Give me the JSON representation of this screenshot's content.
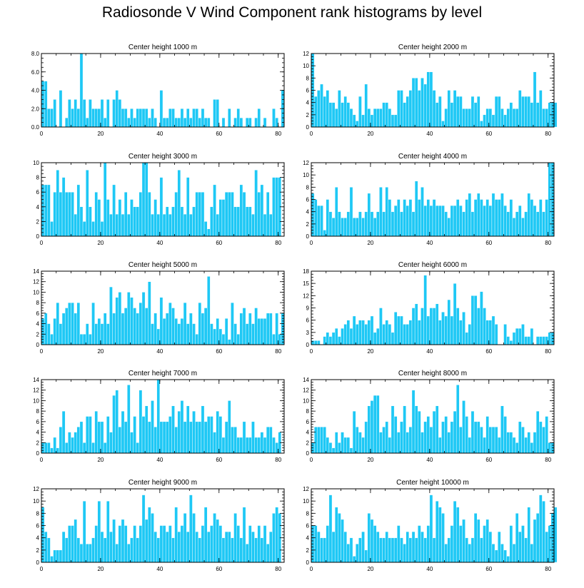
{
  "title": "Radiosonde V Wind Component rank histograms by level",
  "colors": {
    "bar": "#1ec8f5",
    "bar_edge": "#ffffff"
  },
  "chart_data": [
    {
      "type": "bar",
      "title": "Center height 1000 m",
      "x_start": 0,
      "xlim": [
        0,
        82
      ],
      "xticks": [
        0,
        20,
        40,
        60,
        80
      ],
      "ylim": [
        0,
        8
      ],
      "yticks": [
        0,
        2,
        4,
        6,
        8
      ],
      "ytick_labels": [
        "0.0",
        "2.0",
        "4.0",
        "6.0",
        "8.0"
      ],
      "values": [
        5,
        5,
        2,
        2,
        3,
        0,
        4,
        0,
        1,
        3,
        2,
        3,
        2,
        8,
        3,
        1,
        3,
        2,
        2,
        2,
        3,
        1,
        3,
        0,
        3,
        4,
        3,
        2,
        2,
        1,
        2,
        1,
        2,
        2,
        2,
        2,
        1,
        2,
        1,
        0,
        4,
        1,
        1,
        2,
        2,
        1,
        1,
        2,
        1,
        2,
        1,
        2,
        2,
        1,
        2,
        1,
        1,
        0,
        3,
        3,
        0,
        1,
        0,
        2,
        0,
        1,
        2,
        1,
        0,
        1,
        1,
        0,
        1,
        2,
        0,
        1,
        0,
        0,
        2,
        1,
        0,
        4
      ]
    },
    {
      "type": "bar",
      "title": "Center height 2000 m",
      "x_start": 0,
      "xlim": [
        0,
        82
      ],
      "xticks": [
        0,
        20,
        40,
        60,
        80
      ],
      "ylim": [
        0,
        12
      ],
      "yticks": [
        0,
        2,
        4,
        6,
        8,
        10,
        12
      ],
      "values": [
        12,
        5,
        6,
        7,
        5,
        6,
        4,
        4,
        3,
        6,
        4,
        5,
        4,
        3,
        2,
        1,
        5,
        2,
        7,
        3,
        2,
        3,
        3,
        3,
        4,
        4,
        3,
        2,
        2,
        6,
        6,
        4,
        5,
        6,
        8,
        8,
        6,
        8,
        7,
        9,
        9,
        6,
        4,
        5,
        1,
        3,
        6,
        4,
        6,
        5,
        5,
        3,
        3,
        3,
        5,
        4,
        5,
        1,
        2,
        3,
        3,
        2,
        5,
        5,
        3,
        2,
        3,
        4,
        3,
        3,
        6,
        5,
        5,
        5,
        4,
        9,
        4,
        6,
        3,
        3,
        4,
        4,
        4
      ]
    },
    {
      "type": "bar",
      "title": "Center height 3000 m",
      "x_start": 0,
      "xlim": [
        0,
        82
      ],
      "xticks": [
        0,
        20,
        40,
        60,
        80
      ],
      "ylim": [
        0,
        10
      ],
      "yticks": [
        0,
        2,
        4,
        6,
        8,
        10
      ],
      "values": [
        7,
        7,
        7,
        2,
        6,
        9,
        6,
        8,
        6,
        6,
        6,
        3,
        7,
        4,
        2,
        9,
        4,
        2,
        6,
        5,
        2,
        10,
        5,
        3,
        7,
        3,
        5,
        3,
        6,
        3,
        5,
        4,
        4,
        6,
        10,
        10,
        6,
        3,
        5,
        3,
        8,
        3,
        4,
        3,
        4,
        6,
        9,
        4,
        3,
        8,
        3,
        4,
        6,
        6,
        6,
        2,
        1,
        4,
        7,
        3,
        5,
        5,
        6,
        6,
        6,
        4,
        4,
        7,
        6,
        4,
        4,
        3,
        9,
        6,
        7,
        3,
        6,
        3,
        8,
        8,
        8
      ]
    },
    {
      "type": "bar",
      "title": "Center height 4000 m",
      "x_start": 0,
      "xlim": [
        0,
        82
      ],
      "xticks": [
        0,
        20,
        40,
        60,
        80
      ],
      "ylim": [
        0,
        12
      ],
      "yticks": [
        0,
        2,
        4,
        6,
        8,
        10,
        12
      ],
      "values": [
        7,
        6,
        5,
        5,
        1,
        6,
        4,
        3,
        8,
        4,
        3,
        3,
        4,
        8,
        3,
        3,
        4,
        3,
        4,
        7,
        4,
        3,
        4,
        8,
        4,
        8,
        6,
        4,
        5,
        6,
        4,
        6,
        5,
        6,
        4,
        9,
        6,
        8,
        5,
        6,
        5,
        6,
        5,
        5,
        5,
        4,
        3,
        5,
        5,
        6,
        5,
        4,
        6,
        7,
        4,
        6,
        7,
        6,
        5,
        6,
        5,
        7,
        6,
        6,
        7,
        5,
        4,
        6,
        3,
        4,
        5,
        3,
        4,
        7,
        6,
        5,
        4,
        6,
        4,
        6,
        12,
        12
      ]
    },
    {
      "type": "bar",
      "title": "Center height 5000 m",
      "x_start": 0,
      "xlim": [
        0,
        82
      ],
      "xticks": [
        0,
        20,
        40,
        60,
        80
      ],
      "ylim": [
        0,
        14
      ],
      "yticks": [
        0,
        2,
        4,
        6,
        8,
        10,
        12,
        14
      ],
      "values": [
        5,
        6,
        4,
        2,
        5,
        8,
        4,
        6,
        7,
        8,
        8,
        6,
        8,
        2,
        2,
        4,
        2,
        8,
        4,
        5,
        4,
        6,
        4,
        11,
        6,
        9,
        10,
        6,
        7,
        10,
        9,
        7,
        6,
        8,
        10,
        7,
        12,
        4,
        6,
        3,
        9,
        5,
        6,
        8,
        7,
        5,
        4,
        5,
        8,
        4,
        6,
        4,
        2,
        8,
        6,
        7,
        13,
        4,
        3,
        5,
        3,
        2,
        5,
        1,
        8,
        4,
        2,
        6,
        7,
        4,
        6,
        4,
        7,
        5,
        5,
        5,
        6,
        6,
        2,
        6,
        2,
        6
      ]
    },
    {
      "type": "bar",
      "title": "Center height 6000 m",
      "x_start": 0,
      "xlim": [
        0,
        82
      ],
      "xticks": [
        0,
        20,
        40,
        60,
        80
      ],
      "ylim": [
        0,
        18
      ],
      "yticks": [
        0,
        3,
        6,
        9,
        12,
        15,
        18
      ],
      "values": [
        1,
        1,
        1,
        0,
        2,
        3,
        2,
        3,
        4,
        2,
        4,
        5,
        6,
        4,
        7,
        5,
        6,
        6,
        5,
        6,
        7,
        3,
        4,
        9,
        5,
        6,
        5,
        3,
        8,
        7,
        7,
        5,
        5,
        6,
        9,
        10,
        6,
        9,
        17,
        7,
        9,
        9,
        10,
        6,
        8,
        7,
        11,
        7,
        15,
        9,
        6,
        8,
        3,
        5,
        12,
        12,
        9,
        13,
        9,
        6,
        6,
        7,
        5,
        0,
        0,
        5,
        2,
        1,
        3,
        4,
        4,
        5,
        2,
        2,
        4,
        0,
        2,
        2,
        2,
        2,
        3,
        3
      ]
    },
    {
      "type": "bar",
      "title": "Center height 7000 m",
      "x_start": 0,
      "xlim": [
        0,
        82
      ],
      "xticks": [
        0,
        20,
        40,
        60,
        80
      ],
      "ylim": [
        0,
        14
      ],
      "yticks": [
        0,
        2,
        4,
        6,
        8,
        10,
        12,
        14
      ],
      "values": [
        2,
        2,
        2,
        1,
        3,
        1,
        5,
        8,
        2,
        4,
        3,
        4,
        5,
        6,
        2,
        7,
        7,
        2,
        8,
        6,
        6,
        2,
        7,
        4,
        11,
        12,
        5,
        8,
        6,
        13,
        4,
        7,
        2,
        12,
        7,
        9,
        6,
        10,
        5,
        14,
        6,
        6,
        6,
        7,
        9,
        5,
        8,
        10,
        6,
        9,
        6,
        8,
        6,
        6,
        9,
        6,
        7,
        7,
        4,
        8,
        7,
        3,
        6,
        10,
        5,
        5,
        3,
        3,
        6,
        3,
        3,
        6,
        3,
        3,
        4,
        3,
        5,
        5,
        3,
        2,
        4
      ]
    },
    {
      "type": "bar",
      "title": "Center height 8000 m",
      "x_start": 0,
      "xlim": [
        0,
        82
      ],
      "xticks": [
        0,
        20,
        40,
        60,
        80
      ],
      "ylim": [
        0,
        14
      ],
      "yticks": [
        0,
        2,
        4,
        6,
        8,
        10,
        12,
        14
      ],
      "values": [
        2,
        5,
        5,
        5,
        5,
        3,
        2,
        1,
        4,
        2,
        4,
        3,
        3,
        1,
        8,
        5,
        4,
        3,
        6,
        9,
        10,
        11,
        11,
        4,
        5,
        6,
        3,
        9,
        7,
        4,
        6,
        9,
        4,
        5,
        12,
        9,
        8,
        4,
        6,
        7,
        5,
        8,
        9,
        3,
        6,
        7,
        4,
        6,
        8,
        13,
        5,
        10,
        7,
        3,
        8,
        6,
        6,
        5,
        3,
        7,
        5,
        5,
        5,
        3,
        9,
        7,
        4,
        4,
        3,
        2,
        6,
        5,
        3,
        4,
        2,
        4,
        8,
        6,
        5,
        7,
        2,
        2
      ]
    },
    {
      "type": "bar",
      "title": "Center height 9000 m",
      "x_start": 0,
      "xlim": [
        0,
        82
      ],
      "xticks": [
        0,
        20,
        40,
        60,
        80
      ],
      "ylim": [
        0,
        12
      ],
      "yticks": [
        0,
        2,
        4,
        6,
        8,
        10,
        12
      ],
      "values": [
        9,
        5,
        4,
        1,
        2,
        2,
        2,
        5,
        4,
        6,
        6,
        7,
        4,
        3,
        10,
        3,
        3,
        4,
        6,
        10,
        5,
        4,
        10,
        5,
        7,
        3,
        6,
        7,
        6,
        3,
        4,
        6,
        4,
        6,
        11,
        7,
        9,
        8,
        5,
        4,
        6,
        6,
        5,
        6,
        4,
        9,
        5,
        6,
        8,
        5,
        11,
        8,
        5,
        4,
        6,
        9,
        5,
        6,
        8,
        7,
        6,
        4,
        5,
        5,
        4,
        8,
        6,
        4,
        9,
        3,
        6,
        5,
        4,
        6,
        4,
        6,
        3,
        5,
        8,
        9,
        8
      ]
    },
    {
      "type": "bar",
      "title": "Center height 10000 m",
      "x_start": 0,
      "xlim": [
        0,
        82
      ],
      "xticks": [
        0,
        20,
        40,
        60,
        80
      ],
      "ylim": [
        0,
        12
      ],
      "yticks": [
        0,
        2,
        4,
        6,
        8,
        10,
        12
      ],
      "values": [
        6,
        6,
        5,
        4,
        4,
        6,
        11,
        5,
        9,
        8,
        7,
        5,
        3,
        4,
        1,
        3,
        4,
        5,
        2,
        8,
        7,
        6,
        5,
        4,
        4,
        5,
        4,
        4,
        4,
        6,
        4,
        3,
        5,
        4,
        5,
        4,
        6,
        5,
        4,
        6,
        11,
        4,
        10,
        9,
        8,
        3,
        4,
        6,
        10,
        9,
        6,
        7,
        4,
        3,
        4,
        8,
        7,
        4,
        6,
        7,
        5,
        3,
        2,
        5,
        3,
        2,
        1,
        6,
        3,
        8,
        5,
        6,
        4,
        9,
        3,
        7,
        8,
        11,
        10,
        5,
        6,
        8,
        9
      ]
    }
  ]
}
